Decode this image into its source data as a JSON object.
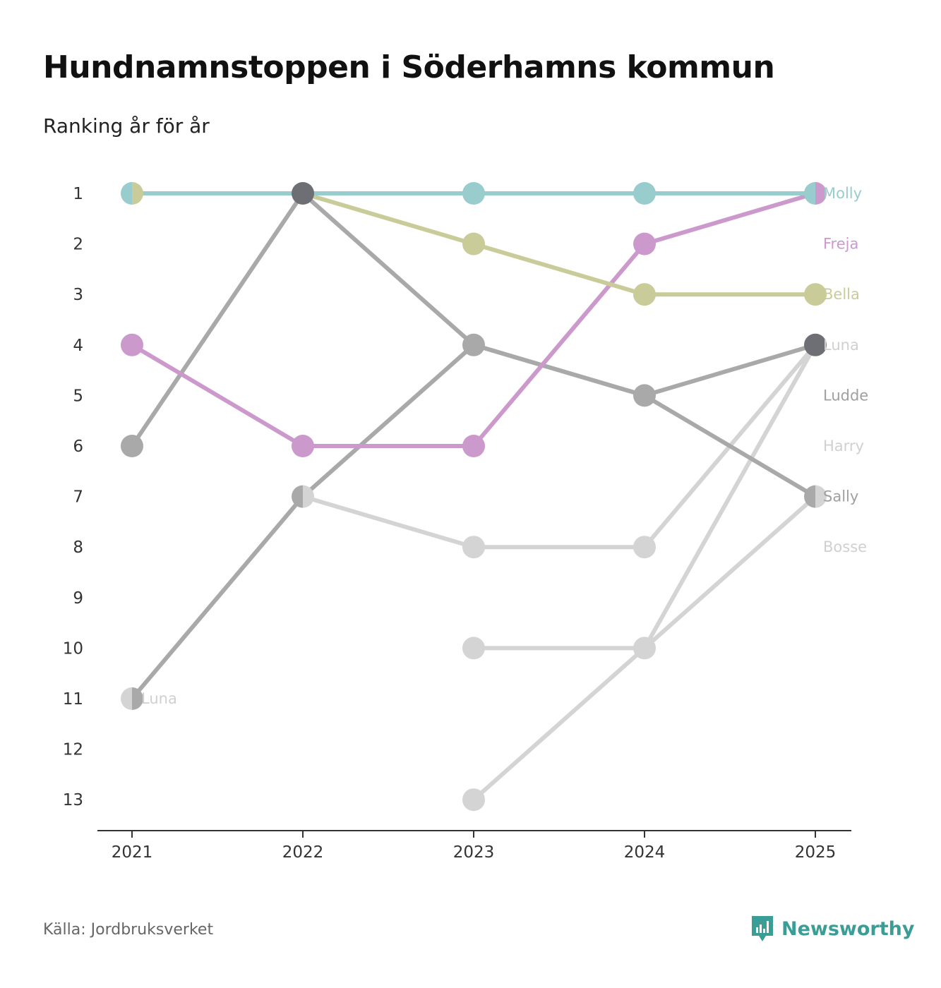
{
  "title": "Hundnamnstoppen i Söderhamns kommun",
  "subtitle": "Ranking år för år",
  "source": "Källa: Jordbruksverket",
  "brand": {
    "name": "Newsworthy",
    "icon": "newsworthy-logo-icon",
    "color": "#3a9e96"
  },
  "chart_data": {
    "type": "line",
    "subtype": "bump",
    "x": [
      "2021",
      "2022",
      "2023",
      "2024",
      "2025"
    ],
    "y_ticks": [
      1,
      2,
      3,
      4,
      5,
      6,
      7,
      8,
      9,
      10,
      11,
      12,
      13
    ],
    "ylim": [
      1,
      13
    ],
    "y_inverted": true,
    "series": [
      {
        "name": "Bosse",
        "color": "#d4d4d4",
        "values": [
          null,
          null,
          13,
          10,
          7
        ]
      },
      {
        "name": "Harry",
        "color": "#d4d4d4",
        "values": [
          null,
          7,
          8,
          8,
          4
        ]
      },
      {
        "name": "Ludde",
        "color": "#d4d4d4",
        "values": [
          null,
          null,
          10,
          10,
          4
        ]
      },
      {
        "name": "Sally",
        "color": "#a9a9a9",
        "values": [
          6,
          1,
          4,
          5,
          7
        ]
      },
      {
        "name": "Luna",
        "color": "#a9a9a9",
        "values": [
          11,
          7,
          4,
          5,
          4
        ]
      },
      {
        "name": "Freja",
        "color": "#cc99cc",
        "values": [
          4,
          6,
          6,
          2,
          1
        ]
      },
      {
        "name": "Bella",
        "color": "#c9cc99",
        "values": [
          1,
          1,
          2,
          3,
          3
        ]
      },
      {
        "name": "Molly",
        "color": "#99cccc",
        "values": [
          1,
          1,
          1,
          1,
          1
        ]
      }
    ],
    "end_labels": [
      {
        "text": "Molly",
        "rank": 1,
        "color": "#99cccc"
      },
      {
        "text": "Freja",
        "rank": 2,
        "color": "#cc99cc"
      },
      {
        "text": "Bella",
        "rank": 3,
        "color": "#c9cc99"
      },
      {
        "text": "Luna",
        "rank": 4,
        "color": "#d0d0d0"
      },
      {
        "text": "Ludde",
        "rank": 5,
        "color": "#a0a0a0"
      },
      {
        "text": "Harry",
        "rank": 6,
        "color": "#d0d0d0"
      },
      {
        "text": "Sally",
        "rank": 7,
        "color": "#a0a0a0"
      },
      {
        "text": "Bosse",
        "rank": 8,
        "color": "#d0d0d0"
      }
    ],
    "start_labels": [
      {
        "text": "Luna",
        "rank": 11,
        "color": "#d0d0d0"
      }
    ],
    "markers": [
      {
        "year": "2021",
        "rank": 1,
        "colors": [
          "#99cccc",
          "#c9cc99"
        ]
      },
      {
        "year": "2021",
        "rank": 4,
        "colors": [
          "#cc99cc"
        ]
      },
      {
        "year": "2021",
        "rank": 6,
        "colors": [
          "#a9a9a9"
        ]
      },
      {
        "year": "2021",
        "rank": 11,
        "colors": [
          "#d4d4d4",
          "#a9a9a9"
        ]
      },
      {
        "year": "2022",
        "rank": 1,
        "colors": [
          "#6e6e75"
        ]
      },
      {
        "year": "2022",
        "rank": 6,
        "colors": [
          "#cc99cc"
        ]
      },
      {
        "year": "2022",
        "rank": 7,
        "colors": [
          "#a9a9a9",
          "#d4d4d4"
        ]
      },
      {
        "year": "2023",
        "rank": 1,
        "colors": [
          "#99cccc"
        ]
      },
      {
        "year": "2023",
        "rank": 2,
        "colors": [
          "#c9cc99"
        ]
      },
      {
        "year": "2023",
        "rank": 4,
        "colors": [
          "#a9a9a9"
        ]
      },
      {
        "year": "2023",
        "rank": 6,
        "colors": [
          "#cc99cc"
        ]
      },
      {
        "year": "2023",
        "rank": 8,
        "colors": [
          "#d4d4d4"
        ]
      },
      {
        "year": "2023",
        "rank": 10,
        "colors": [
          "#d4d4d4"
        ]
      },
      {
        "year": "2023",
        "rank": 13,
        "colors": [
          "#d4d4d4"
        ]
      },
      {
        "year": "2024",
        "rank": 1,
        "colors": [
          "#99cccc"
        ]
      },
      {
        "year": "2024",
        "rank": 2,
        "colors": [
          "#cc99cc"
        ]
      },
      {
        "year": "2024",
        "rank": 3,
        "colors": [
          "#c9cc99"
        ]
      },
      {
        "year": "2024",
        "rank": 5,
        "colors": [
          "#a9a9a9"
        ]
      },
      {
        "year": "2024",
        "rank": 8,
        "colors": [
          "#d4d4d4"
        ]
      },
      {
        "year": "2024",
        "rank": 10,
        "colors": [
          "#d4d4d4"
        ]
      },
      {
        "year": "2025",
        "rank": 1,
        "colors": [
          "#99cccc",
          "#cc99cc"
        ]
      },
      {
        "year": "2025",
        "rank": 3,
        "colors": [
          "#c9cc99"
        ]
      },
      {
        "year": "2025",
        "rank": 4,
        "colors": [
          "#6e6e75"
        ]
      },
      {
        "year": "2025",
        "rank": 7,
        "colors": [
          "#a9a9a9",
          "#d4d4d4"
        ]
      }
    ]
  }
}
